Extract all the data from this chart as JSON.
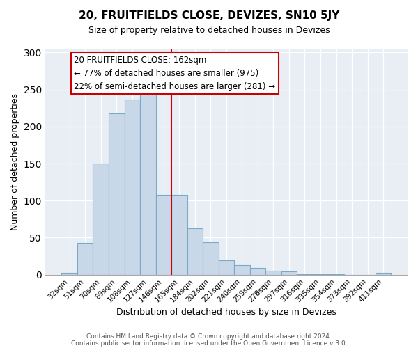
{
  "title": "20, FRUITFIELDS CLOSE, DEVIZES, SN10 5JY",
  "subtitle": "Size of property relative to detached houses in Devizes",
  "xlabel": "Distribution of detached houses by size in Devizes",
  "ylabel": "Number of detached properties",
  "footer_line1": "Contains HM Land Registry data © Crown copyright and database right 2024.",
  "footer_line2": "Contains public sector information licensed under the Open Government Licence v 3.0.",
  "bin_labels": [
    "32sqm",
    "51sqm",
    "70sqm",
    "89sqm",
    "108sqm",
    "127sqm",
    "146sqm",
    "165sqm",
    "184sqm",
    "202sqm",
    "221sqm",
    "240sqm",
    "259sqm",
    "278sqm",
    "297sqm",
    "316sqm",
    "335sqm",
    "354sqm",
    "373sqm",
    "392sqm",
    "411sqm"
  ],
  "bar_values": [
    3,
    43,
    150,
    218,
    236,
    248,
    108,
    108,
    63,
    44,
    19,
    13,
    9,
    5,
    4,
    1,
    1,
    1,
    0,
    0,
    3
  ],
  "bar_color": "#c8d8e8",
  "bar_edge_color": "#7aaac8",
  "highlight_line_color": "#cc0000",
  "highlight_bin_index": 6,
  "annotation_title": "20 FRUITFIELDS CLOSE: 162sqm",
  "annotation_line1": "← 77% of detached houses are smaller (975)",
  "annotation_line2": "22% of semi-detached houses are larger (281) →",
  "ylim": [
    0,
    305
  ],
  "yticks": [
    0,
    50,
    100,
    150,
    200,
    250,
    300
  ],
  "background_color": "#e8eef4"
}
